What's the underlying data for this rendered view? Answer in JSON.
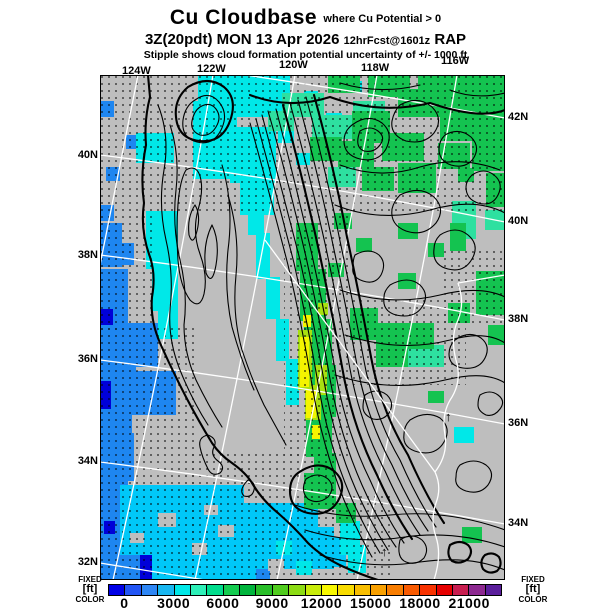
{
  "title": {
    "main": "Cu Cloudbase",
    "qualifier": "where Cu Potential > 0"
  },
  "datetime_line": {
    "valid": "3Z(20pdt) MON 13 Apr 2026",
    "forecast": "12hrFcst@1601z",
    "model": "RAP"
  },
  "note": "Stipple shows cloud formation potential uncertainty of +/- 1000 ft",
  "map": {
    "lon_labels": [
      "124W",
      "122W",
      "120W",
      "118W",
      "116W"
    ],
    "lat_labels_left": [
      "40N",
      "38N",
      "36N",
      "34N",
      "32N"
    ],
    "lat_labels_right": [
      "42N",
      "40N",
      "38N",
      "36N",
      "34N"
    ],
    "markers": [
      {
        "glyph": "↑"
      },
      {
        "glyph": "↑"
      }
    ]
  },
  "colorbar": {
    "side": {
      "top": "FIXED",
      "mid": "[ft]",
      "bottom": "COLOR"
    },
    "ticks": [
      "0",
      "3000",
      "6000",
      "9000",
      "12000",
      "15000",
      "18000",
      "21000"
    ],
    "tick_step_ft": 3000,
    "segment_step_ft": 1000,
    "colors": [
      "#0000E6",
      "#2255F5",
      "#2E86F5",
      "#18B6F0",
      "#00E8E8",
      "#2EF0B8",
      "#00DC8C",
      "#14CC50",
      "#00B43C",
      "#28BE28",
      "#50CC1E",
      "#8CDC14",
      "#C8EC0A",
      "#F8F800",
      "#F8DC00",
      "#F8BE00",
      "#F8A000",
      "#F87D00",
      "#F85A00",
      "#F83200",
      "#E60000",
      "#C81E50",
      "#8C2890",
      "#5A1E9B"
    ]
  },
  "palette": {
    "gray": "#BEBEBE",
    "ocean_blue": "#1E86F0",
    "navy": "#0000D8",
    "cyan_bright": "#00C8F8",
    "cyan": "#00E8E8",
    "teal": "#2EE0A0",
    "green": "#14C350",
    "yellow_green": "#A8E010",
    "yellow": "#F4F400",
    "contour": "#000000",
    "grid": "#FFFFFF"
  }
}
